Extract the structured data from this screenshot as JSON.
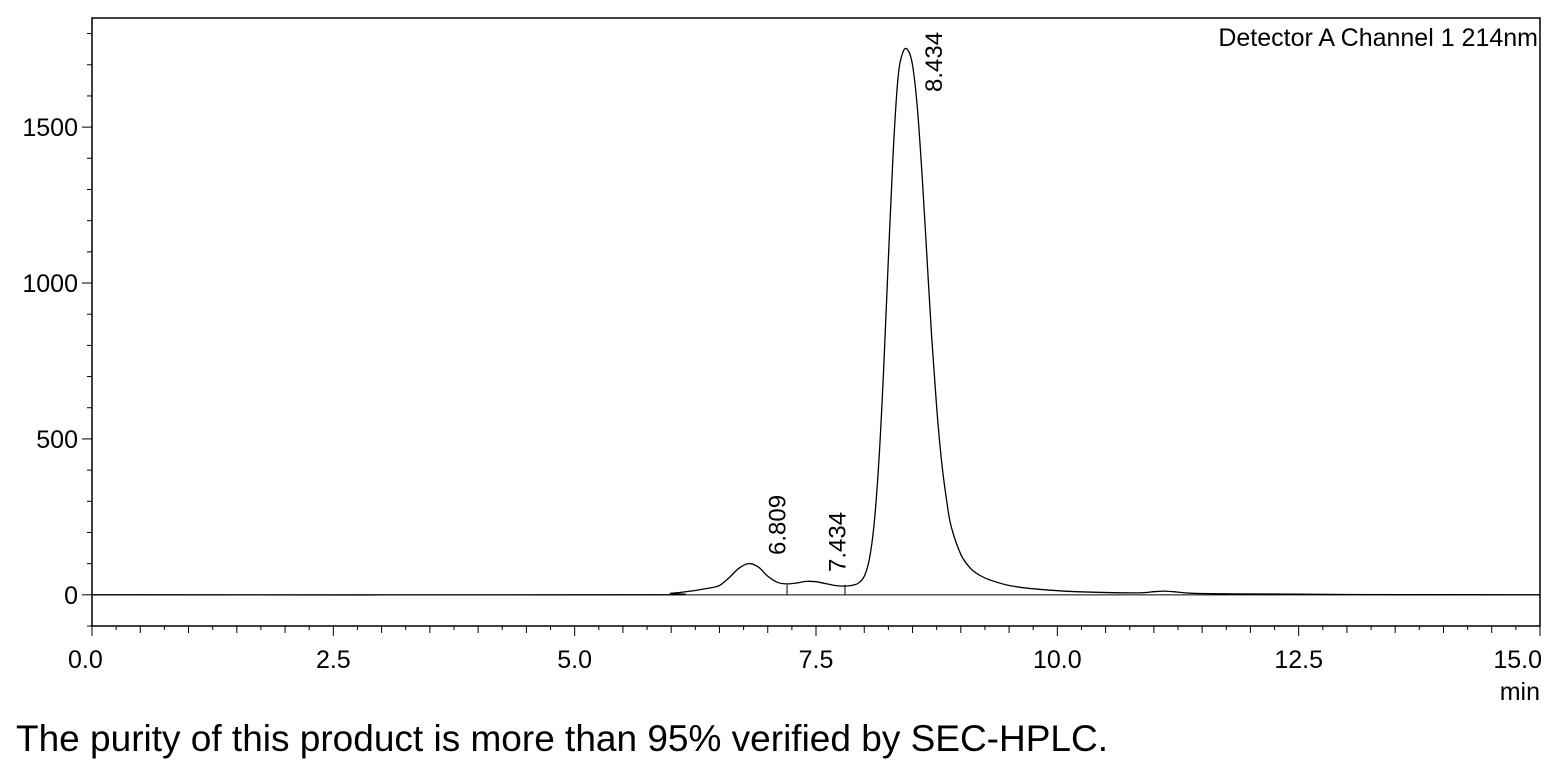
{
  "chart_data": {
    "type": "line",
    "title": "",
    "legend": "Detector A Channel 1 214nm",
    "legend_position": "top-right",
    "xlabel": "min",
    "ylabel": "",
    "xlim": [
      0,
      15
    ],
    "ylim": [
      -100,
      1850
    ],
    "x_ticks": [
      0.0,
      2.5,
      5.0,
      7.5,
      10.0,
      12.5,
      15.0
    ],
    "x_tick_labels": [
      "0.0",
      "2.5",
      "5.0",
      "7.5",
      "10.0",
      "12.5",
      "15.0"
    ],
    "y_ticks": [
      0,
      500,
      1000,
      1500
    ],
    "y_tick_labels": [
      "0",
      "500",
      "1000",
      "1500"
    ],
    "grid": false,
    "series": [
      {
        "x": [
          0,
          5.6,
          6.0,
          6.2,
          6.4,
          6.5,
          6.6,
          6.7,
          6.8,
          6.9,
          7.0,
          7.1,
          7.2,
          7.3,
          7.4,
          7.5,
          7.6,
          7.7,
          7.8,
          7.9,
          7.95,
          8.0,
          8.05,
          8.1,
          8.15,
          8.2,
          8.25,
          8.3,
          8.35,
          8.4,
          8.45,
          8.5,
          8.55,
          8.6,
          8.65,
          8.7,
          8.75,
          8.8,
          8.85,
          8.9,
          9.0,
          9.1,
          9.2,
          9.3,
          9.5,
          9.8,
          10.2,
          10.8,
          11.0,
          11.1,
          11.2,
          11.4,
          11.8,
          12.5,
          13.0,
          15.0
        ],
        "y": [
          0,
          0,
          5,
          12,
          22,
          30,
          55,
          85,
          100,
          90,
          60,
          40,
          35,
          38,
          43,
          42,
          36,
          30,
          28,
          32,
          40,
          60,
          110,
          220,
          420,
          720,
          1080,
          1420,
          1660,
          1740,
          1748,
          1700,
          1560,
          1340,
          1080,
          820,
          600,
          430,
          310,
          220,
          130,
          85,
          62,
          48,
          30,
          18,
          10,
          6,
          10,
          12,
          10,
          5,
          3,
          2,
          1,
          0
        ]
      }
    ],
    "peak_labels": [
      {
        "x": 6.809,
        "text": "6.809"
      },
      {
        "x": 7.434,
        "text": "7.434"
      },
      {
        "x": 8.434,
        "text": "8.434"
      }
    ],
    "integration_marks": [
      7.2,
      7.8
    ],
    "line_color": "#000000"
  },
  "caption": "The purity of this product is more than 95% verified by SEC-HPLC."
}
